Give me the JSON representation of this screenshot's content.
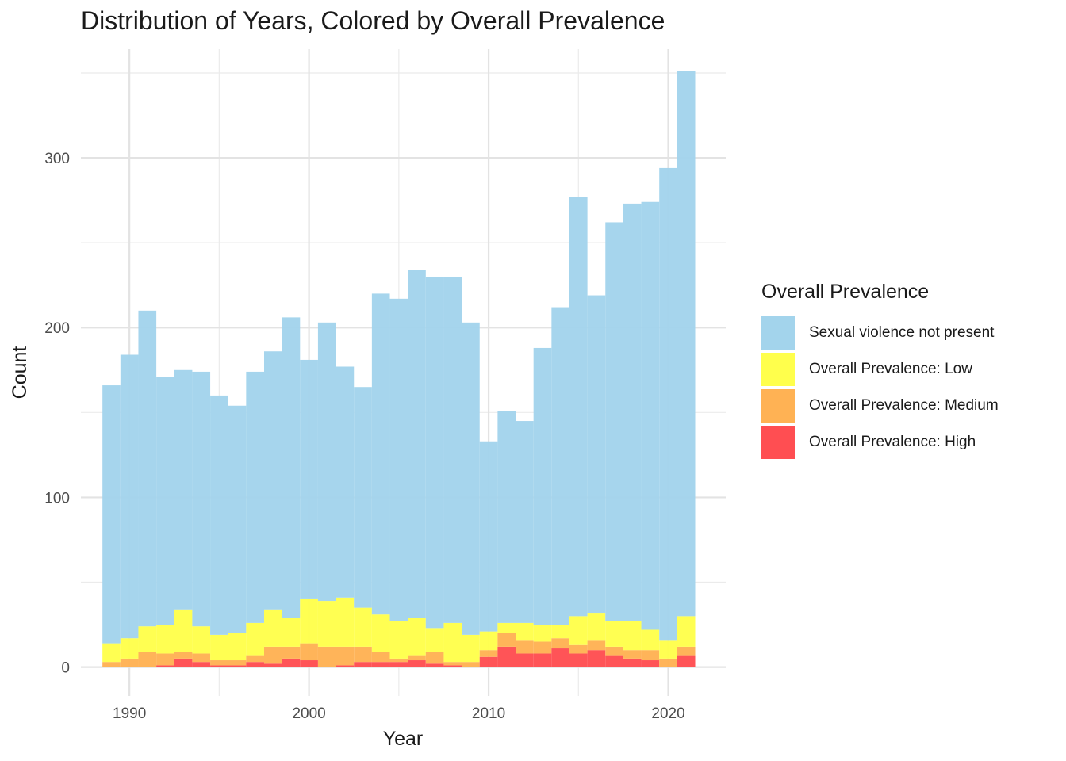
{
  "chart_data": {
    "type": "bar",
    "stacked": true,
    "title": "Distribution of Years, Colored by Overall Prevalence",
    "xlabel": "Year",
    "ylabel": "Count",
    "xlim": [
      1987.3,
      2023.2
    ],
    "ylim": [
      -17,
      364
    ],
    "x_ticks": [
      1990,
      2000,
      2010,
      2020
    ],
    "y_ticks": [
      0,
      100,
      200,
      300
    ],
    "grid": true,
    "legend_title": "Overall Prevalence",
    "legend_position": "right",
    "bin_width": 1,
    "years": [
      1989,
      1990,
      1991,
      1992,
      1993,
      1994,
      1995,
      1996,
      1997,
      1998,
      1999,
      2000,
      2001,
      2002,
      2003,
      2004,
      2005,
      2006,
      2007,
      2008,
      2009,
      2010,
      2011,
      2012,
      2013,
      2014,
      2015,
      2016,
      2017,
      2018,
      2019,
      2020,
      2021
    ],
    "series": [
      {
        "name": "Overall Prevalence: High",
        "color": "#ff4e52",
        "values": [
          0,
          0,
          0,
          1,
          5,
          3,
          1,
          1,
          3,
          2,
          5,
          4,
          0,
          1,
          3,
          3,
          3,
          4,
          2,
          1,
          0,
          6,
          12,
          8,
          8,
          11,
          8,
          10,
          7,
          5,
          4,
          0,
          7
        ]
      },
      {
        "name": "Overall Prevalence: Medium",
        "color": "#ffb254",
        "values": [
          3,
          5,
          9,
          7,
          4,
          5,
          3,
          3,
          4,
          10,
          7,
          10,
          12,
          11,
          9,
          6,
          2,
          3,
          7,
          2,
          3,
          4,
          8,
          8,
          7,
          6,
          5,
          6,
          5,
          5,
          6,
          5,
          5
        ]
      },
      {
        "name": "Overall Prevalence: Low",
        "color": "#ffff4c",
        "values": [
          11,
          12,
          15,
          17,
          25,
          16,
          15,
          16,
          19,
          22,
          17,
          26,
          27,
          29,
          23,
          22,
          22,
          22,
          14,
          23,
          16,
          11,
          6,
          10,
          10,
          8,
          17,
          16,
          15,
          17,
          12,
          11,
          18
        ]
      },
      {
        "name": "Sexual violence not present",
        "color": "#a3d4ec",
        "values": [
          152,
          167,
          186,
          146,
          141,
          150,
          141,
          134,
          148,
          152,
          177,
          141,
          164,
          136,
          130,
          189,
          190,
          205,
          207,
          204,
          184,
          112,
          125,
          119,
          163,
          187,
          247,
          187,
          235,
          246,
          252,
          278,
          321
        ]
      }
    ]
  }
}
